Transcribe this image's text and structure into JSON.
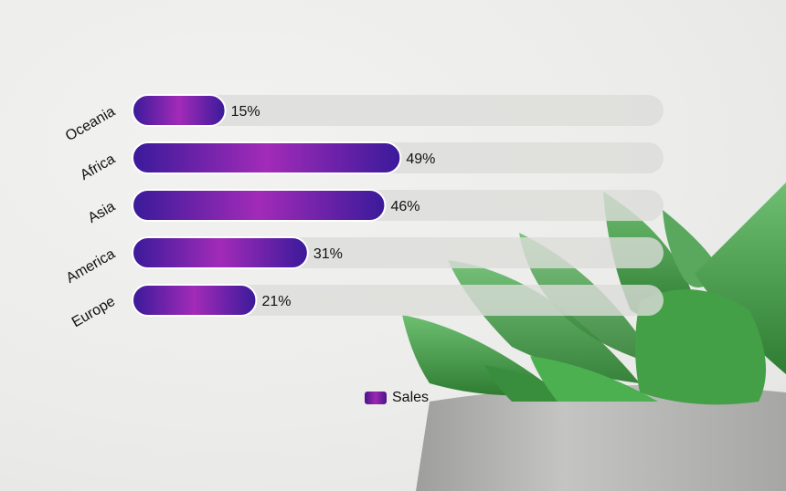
{
  "chart_data": {
    "type": "bar",
    "orientation": "horizontal",
    "categories": [
      "Oceania",
      "Africa",
      "Asia",
      "America",
      "Europe"
    ],
    "series": [
      {
        "name": "Sales",
        "values": [
          15,
          49,
          46,
          31,
          21
        ]
      }
    ],
    "value_suffix": "%",
    "xlim": [
      0,
      100
    ],
    "grid": false,
    "legend": {
      "position": "bottom-center",
      "entries": [
        "Sales"
      ]
    },
    "colors": {
      "bar_dark": "#3a1a9a",
      "bar_light": "#a22bb8",
      "track": "#dcdcda"
    }
  }
}
